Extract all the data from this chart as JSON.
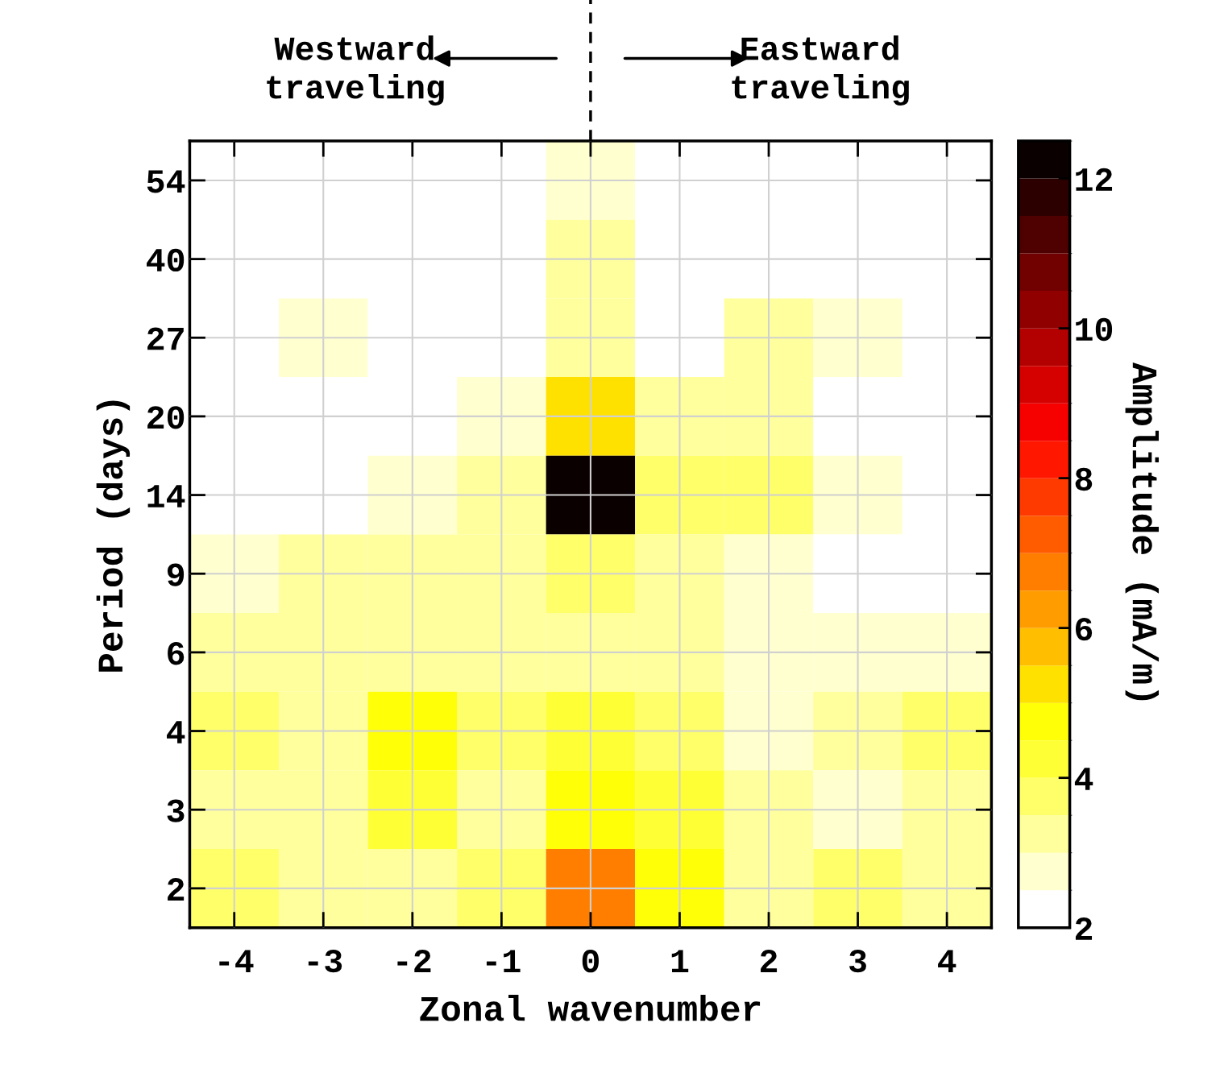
{
  "chart_data": {
    "type": "heatmap",
    "xlabel": "Zonal wavenumber",
    "ylabel": "Period (days)",
    "clabel": "Amplitude (mA/m)",
    "annotations": [
      "Westward traveling",
      "Eastward traveling"
    ],
    "categories": [
      "-4",
      "-3",
      "-2",
      "-1",
      "0",
      "1",
      "2",
      "3",
      "4"
    ],
    "y_categories": [
      "54",
      "40",
      "27",
      "20",
      "14",
      "9",
      "6",
      "4",
      "3",
      "2"
    ],
    "cells": [
      [
        2,
        2,
        2,
        2,
        2.5,
        2,
        2,
        2,
        2
      ],
      [
        2,
        2,
        2,
        2,
        3,
        2,
        2,
        2,
        2
      ],
      [
        2,
        2.5,
        2,
        2,
        3,
        2,
        3,
        2.5,
        2
      ],
      [
        2,
        2,
        2,
        2.5,
        5,
        3,
        3,
        2,
        2
      ],
      [
        2,
        2,
        2.5,
        3,
        12.5,
        3.5,
        3.5,
        2.5,
        2
      ],
      [
        2.5,
        3,
        3,
        3,
        3.5,
        3,
        2.5,
        2,
        2
      ],
      [
        3,
        3,
        3,
        3,
        3,
        3,
        2.5,
        2.5,
        2.5
      ],
      [
        3.5,
        3,
        4.5,
        3.5,
        4,
        3.5,
        2.5,
        3,
        3.5
      ],
      [
        3,
        3,
        4,
        3,
        4.5,
        4,
        3,
        2.5,
        3
      ],
      [
        3.5,
        3,
        3,
        3.5,
        6.5,
        4.5,
        3,
        3.5,
        3
      ]
    ],
    "clim": [
      2,
      12.5
    ],
    "cticks": [
      2,
      4,
      6,
      8,
      10,
      12
    ],
    "grid": true
  }
}
